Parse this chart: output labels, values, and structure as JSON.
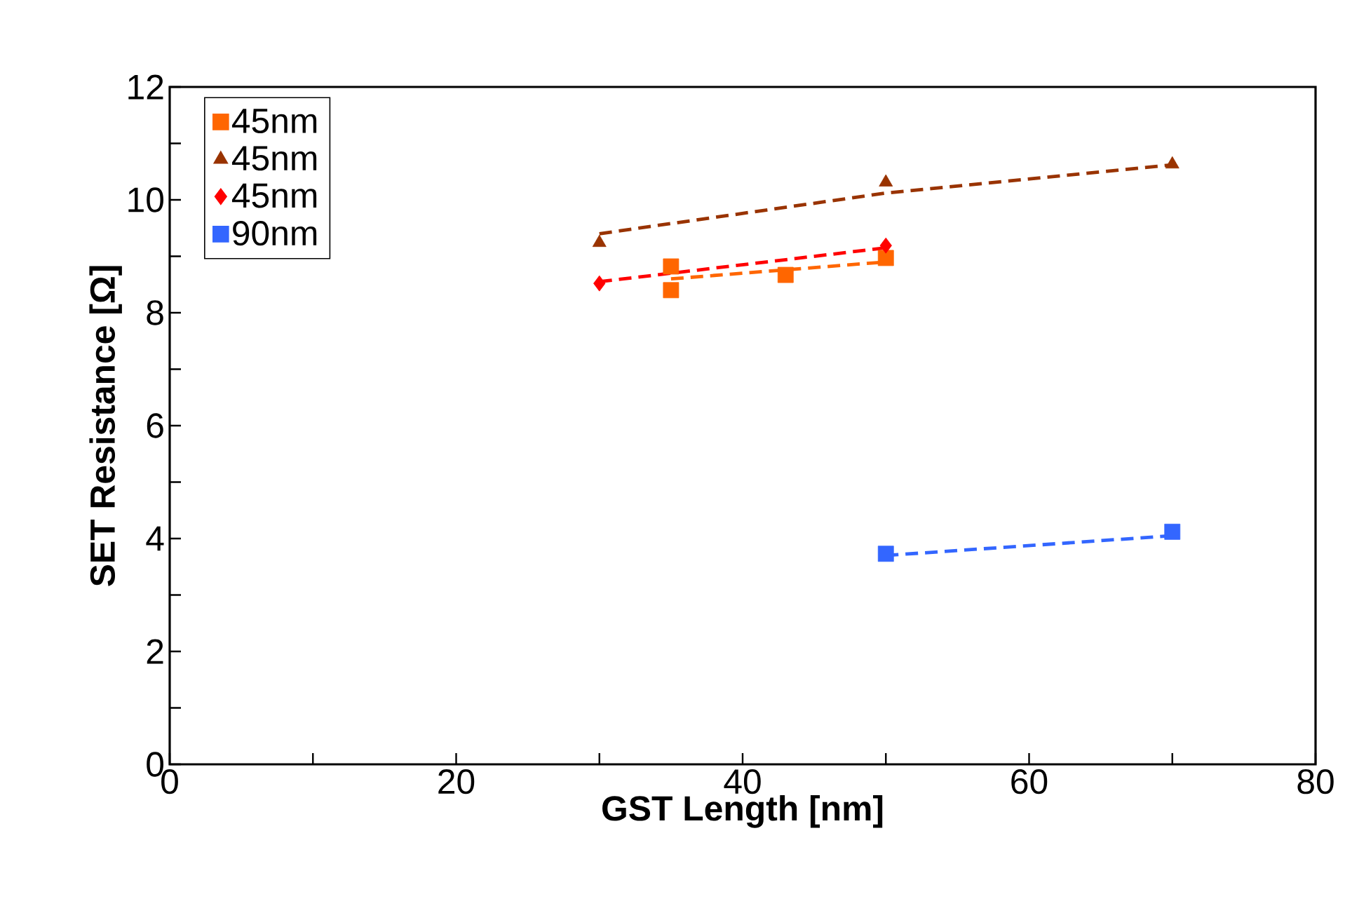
{
  "chart_data": {
    "type": "scatter",
    "xlabel": "GST Length [nm]",
    "ylabel": "SET Resistance [Ω]",
    "xlim": [
      0,
      80
    ],
    "ylim": [
      0,
      12
    ],
    "xticks": [
      0,
      {
        "value": 10,
        "label": null
      },
      20,
      {
        "value": 30,
        "label": null
      },
      40,
      {
        "value": 50,
        "label": null
      },
      60,
      {
        "value": 70,
        "label": null
      },
      80
    ],
    "yticks": [
      0,
      {
        "value": 1,
        "label": null
      },
      2,
      {
        "value": 3,
        "label": null
      },
      4,
      {
        "value": 5,
        "label": null
      },
      6,
      {
        "value": 7,
        "label": null
      },
      8,
      {
        "value": 9,
        "label": null
      },
      10,
      {
        "value": 11,
        "label": null
      },
      12
    ],
    "grid": false,
    "legend": "top left",
    "series": [
      {
        "name": "45nm",
        "color": "#ff6600",
        "marker": "square",
        "x": [
          35,
          35,
          43,
          50
        ],
        "values": [
          8.82,
          8.4,
          8.67,
          8.97
        ]
      },
      {
        "name": "45nm",
        "color": "#993300",
        "marker": "triangle",
        "x": [
          30,
          50,
          70
        ],
        "values": [
          9.24,
          10.31,
          10.63
        ]
      },
      {
        "name": "45nm",
        "color": "#ff0000",
        "marker": "diamond",
        "x": [
          30,
          50
        ],
        "values": [
          8.52,
          9.19
        ]
      },
      {
        "name": "90nm",
        "color": "#3366ff",
        "marker": "square",
        "x": [
          50,
          70
        ],
        "values": [
          3.73,
          4.12
        ]
      },
      {
        "type": "line",
        "color": "#ff6600",
        "line_style": "dashed",
        "x": [
          35,
          50
        ],
        "values": [
          8.6,
          8.9
        ]
      },
      {
        "type": "line",
        "color": "#993300",
        "line_style": "dashed",
        "x": [
          30,
          50,
          70
        ],
        "values": [
          9.4,
          10.12,
          10.62
        ]
      },
      {
        "type": "line",
        "color": "#ff0000",
        "line_style": "dashed",
        "x": [
          30,
          50
        ],
        "values": [
          8.55,
          9.15
        ]
      },
      {
        "type": "line",
        "color": "#3366ff",
        "line_style": "dashed",
        "x": [
          50,
          70
        ],
        "values": [
          3.7,
          4.05
        ]
      }
    ]
  }
}
